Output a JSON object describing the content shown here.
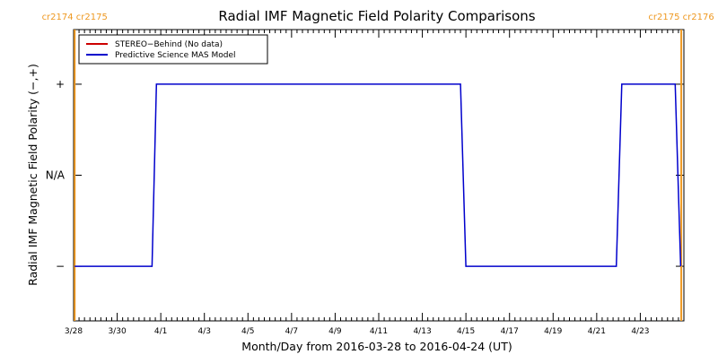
{
  "chart_data": {
    "type": "line",
    "title": "Radial IMF Magnetic Field Polarity Comparisons",
    "xlabel": "Month/Day from 2016-03-28 to 2016-04-24 (UT)",
    "ylabel": "Radial IMF Magnetic Field Polarity (−,+)",
    "xlim": [
      0,
      28
    ],
    "ylim": [
      -1.6,
      1.6
    ],
    "xticks": [
      {
        "value": 0,
        "label": "3/28"
      },
      {
        "value": 2,
        "label": "3/30"
      },
      {
        "value": 4,
        "label": "4/1"
      },
      {
        "value": 6,
        "label": "4/3"
      },
      {
        "value": 8,
        "label": "4/5"
      },
      {
        "value": 10,
        "label": "4/7"
      },
      {
        "value": 12,
        "label": "4/9"
      },
      {
        "value": 14,
        "label": "4/11"
      },
      {
        "value": 16,
        "label": "4/13"
      },
      {
        "value": 18,
        "label": "4/15"
      },
      {
        "value": 20,
        "label": "4/17"
      },
      {
        "value": 22,
        "label": "4/19"
      },
      {
        "value": 24,
        "label": "4/21"
      },
      {
        "value": 26,
        "label": "4/23"
      }
    ],
    "yticks": [
      {
        "value": 1,
        "label": "+"
      },
      {
        "value": 0,
        "label": "N/A"
      },
      {
        "value": -1,
        "label": "−"
      }
    ],
    "minor_ticks_per_day": 4,
    "carrington_markers": [
      {
        "x": 0.05,
        "label": "cr2174 cr2175",
        "side": "left"
      },
      {
        "x": 27.88,
        "label": "cr2175 cr2176",
        "side": "right"
      }
    ],
    "series": [
      {
        "name": "STEREO−Behind (No data)",
        "color": "#cc0000",
        "x": [],
        "y": []
      },
      {
        "name": "Predictive Science MAS Model",
        "color": "#0000cc",
        "x": [
          0.05,
          3.6,
          3.8,
          17.75,
          18.0,
          24.9,
          25.15,
          27.6,
          27.85
        ],
        "y": [
          -1,
          -1,
          1,
          1,
          -1,
          -1,
          1,
          1,
          -1
        ]
      }
    ],
    "marker_color": "#ee9922",
    "legend_position": "top-left",
    "grid": false
  }
}
